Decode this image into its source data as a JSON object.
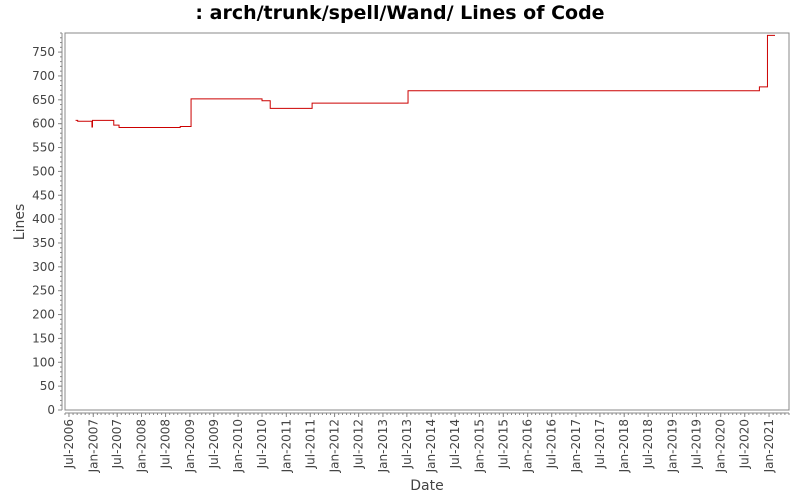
{
  "chart_data": {
    "type": "line",
    "title": ": arch/trunk/spell/Wand/ Lines of Code",
    "xlabel": "Date",
    "ylabel": "Lines",
    "xlim": [
      "2006-06-01",
      "2021-06-01"
    ],
    "ylim": [
      0,
      790
    ],
    "y_ticks": [
      0,
      50,
      100,
      150,
      200,
      250,
      300,
      350,
      400,
      450,
      500,
      550,
      600,
      650,
      700,
      750
    ],
    "x_ticks": [
      "Jul-2006",
      "Jan-2007",
      "Jul-2007",
      "Jan-2008",
      "Jul-2008",
      "Jan-2009",
      "Jul-2009",
      "Jan-2010",
      "Jul-2010",
      "Jan-2011",
      "Jul-2011",
      "Jan-2012",
      "Jul-2012",
      "Jan-2013",
      "Jul-2013",
      "Jan-2014",
      "Jul-2014",
      "Jan-2015",
      "Jul-2015",
      "Jan-2016",
      "Jul-2016",
      "Jan-2017",
      "Jul-2017",
      "Jan-2018",
      "Jul-2018",
      "Jan-2019",
      "Jul-2019",
      "Jan-2020",
      "Jul-2020",
      "Jan-2021"
    ],
    "grid": false,
    "series": [
      {
        "name": "",
        "color": "#cc0000",
        "step": true,
        "points": [
          [
            "2006-08-20",
            607
          ],
          [
            "2006-09-05",
            605
          ],
          [
            "2006-12-18",
            605
          ],
          [
            "2006-12-22",
            593
          ],
          [
            "2006-12-26",
            607
          ],
          [
            "2007-06-01",
            607
          ],
          [
            "2007-06-05",
            597
          ],
          [
            "2007-07-15",
            592
          ],
          [
            "2008-10-20",
            594
          ],
          [
            "2009-01-10",
            652
          ],
          [
            "2010-07-01",
            648
          ],
          [
            "2010-09-01",
            632
          ],
          [
            "2011-07-15",
            643
          ],
          [
            "2013-07-10",
            669
          ],
          [
            "2020-10-20",
            677
          ],
          [
            "2020-12-20",
            785
          ],
          [
            "2021-02-15",
            785
          ]
        ]
      }
    ]
  }
}
